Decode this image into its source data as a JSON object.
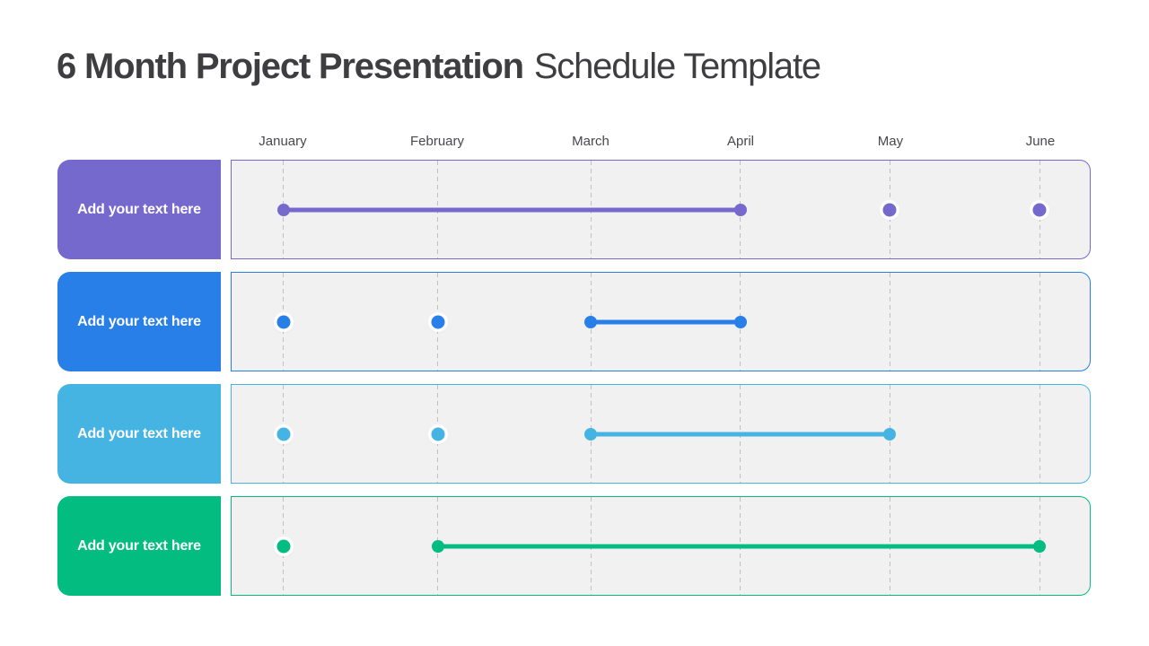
{
  "title": {
    "bold": "6 Month Project Presentation",
    "regular": "Schedule Template",
    "color": "#3E3E41"
  },
  "months": [
    "January",
    "February",
    "March",
    "April",
    "May",
    "June"
  ],
  "chart_data": {
    "type": "bar",
    "variant": "gantt-timeline",
    "title": "6 Month Project Presentation Schedule Template",
    "categories": [
      "January",
      "February",
      "March",
      "April",
      "May",
      "June"
    ],
    "month_positions_pct": [
      6.05,
      24.01,
      41.86,
      59.29,
      76.72,
      94.15
    ],
    "track_background": "#F1F1F2",
    "gridline_color": "#C0C0C3",
    "grid": "dashed-vertical-per-month",
    "legend": null,
    "rows": [
      {
        "label": "Add your text here",
        "color": "#7669CE",
        "segments": [
          {
            "from": "January",
            "to": "April"
          }
        ],
        "milestones": [
          "May",
          "June"
        ]
      },
      {
        "label": "Add your text here",
        "color": "#287FE8",
        "segments": [
          {
            "from": "March",
            "to": "April"
          }
        ],
        "milestones": [
          "January",
          "February"
        ]
      },
      {
        "label": "Add your text here",
        "color": "#46B4E3",
        "segments": [
          {
            "from": "March",
            "to": "May"
          }
        ],
        "milestones": [
          "January",
          "February"
        ]
      },
      {
        "label": "Add your text here",
        "color": "#03BC7F",
        "segments": [
          {
            "from": "February",
            "to": "June"
          }
        ],
        "milestones": [
          "January"
        ]
      }
    ]
  }
}
